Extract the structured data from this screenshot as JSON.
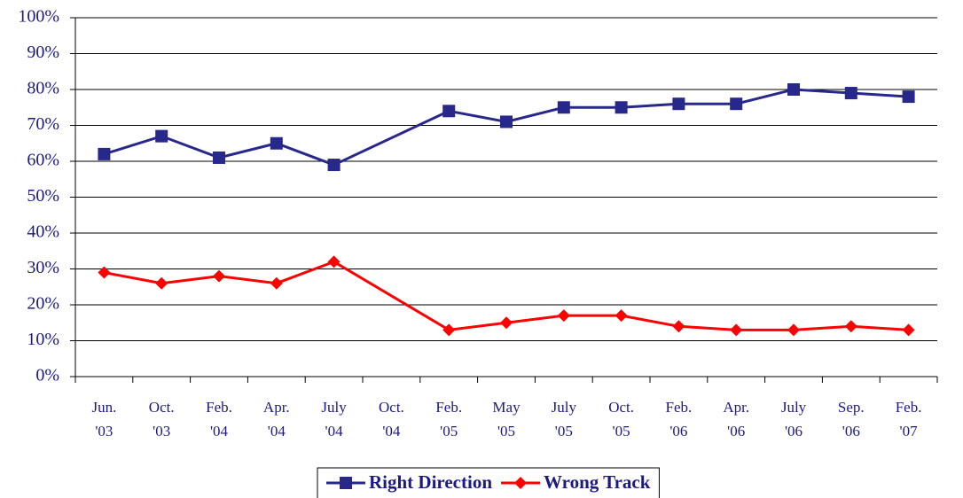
{
  "chart_data": {
    "type": "line",
    "categories": [
      "Jun. '03",
      "Oct. '03",
      "Feb. '04",
      "Apr. '04",
      "July '04",
      "Oct. '04",
      "Feb. '05",
      "May '05",
      "July '05",
      "Oct. '05",
      "Feb. '06",
      "Apr. '06",
      "July '06",
      "Sep. '06",
      "Feb. '07"
    ],
    "series": [
      {
        "name": "Right Direction",
        "color": "#28288c",
        "marker": "square",
        "values": [
          62,
          67,
          61,
          65,
          59,
          null,
          74,
          71,
          75,
          75,
          76,
          76,
          80,
          79,
          78
        ]
      },
      {
        "name": "Wrong Track",
        "color": "#ff0000",
        "marker": "diamond",
        "values": [
          29,
          26,
          28,
          26,
          32,
          null,
          13,
          15,
          17,
          17,
          14,
          13,
          13,
          14,
          13
        ]
      }
    ],
    "ylim": [
      0,
      100
    ],
    "yticks": [
      {
        "value": 0,
        "label": "0%"
      },
      {
        "value": 10,
        "label": "10%"
      },
      {
        "value": 20,
        "label": "20%"
      },
      {
        "value": 30,
        "label": "30%"
      },
      {
        "value": 40,
        "label": "40%"
      },
      {
        "value": 50,
        "label": "50%"
      },
      {
        "value": 60,
        "label": "60%"
      },
      {
        "value": 70,
        "label": "70%"
      },
      {
        "value": 80,
        "label": "80%"
      },
      {
        "value": 90,
        "label": "90%"
      },
      {
        "value": 100,
        "label": "100%"
      }
    ],
    "grid": true,
    "legend": "bottom"
  }
}
